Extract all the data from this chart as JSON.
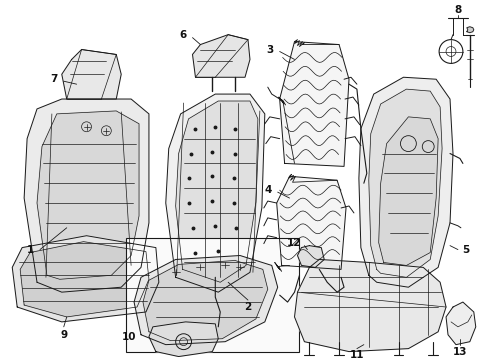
{
  "bg_color": "#ffffff",
  "line_color": "#1a1a1a",
  "label_color": "#111111",
  "fig_width": 4.9,
  "fig_height": 3.6,
  "dpi": 100
}
